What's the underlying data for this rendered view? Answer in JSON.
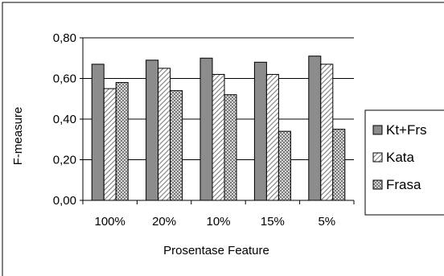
{
  "chart_data": {
    "type": "bar",
    "title": "",
    "xlabel": "Prosentase Feature",
    "ylabel": "F-measure",
    "categories": [
      "100%",
      "20%",
      "10%",
      "15%",
      "5%"
    ],
    "y_ticks": [
      "0,00",
      "0,20",
      "0,40",
      "0,60",
      "0,80"
    ],
    "ylim": [
      0,
      0.8
    ],
    "grid": true,
    "legend_position": "right",
    "series": [
      {
        "name": "Kt+Frs",
        "values": [
          0.67,
          0.69,
          0.7,
          0.68,
          0.71
        ],
        "color": "#8c8c8c",
        "pattern": "solid"
      },
      {
        "name": "Kata",
        "values": [
          0.55,
          0.65,
          0.62,
          0.62,
          0.67
        ],
        "color": "#ffffff",
        "pattern": "diagonal-hatch"
      },
      {
        "name": "Frasa",
        "values": [
          0.58,
          0.54,
          0.52,
          0.34,
          0.35
        ],
        "color": "#b0b0b0",
        "pattern": "dots"
      }
    ]
  }
}
